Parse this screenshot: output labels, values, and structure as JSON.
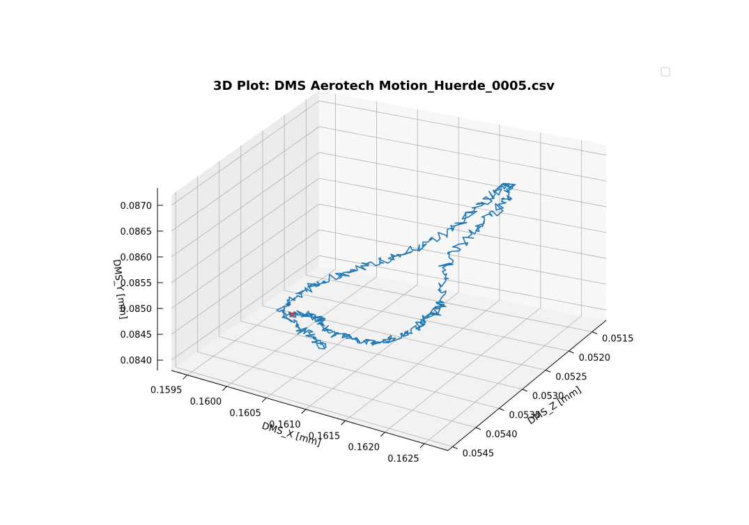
{
  "chart_data": {
    "type": "line3d",
    "title": "3D Plot: DMS Aerotech Motion_Huerde_0005.csv",
    "xlabel": "DMS_X [mm]",
    "ylabel": "DMS_Y [mm]",
    "zlabel": "DMS_Z [mm]",
    "x_ticks": [
      "0.1595",
      "0.1600",
      "0.1605",
      "0.1610",
      "0.1615",
      "0.1620",
      "0.1625"
    ],
    "y_ticks": [
      "0.0840",
      "0.0845",
      "0.0850",
      "0.0855",
      "0.0860",
      "0.0865",
      "0.0870"
    ],
    "z_ticks": [
      "0.0515",
      "0.0520",
      "0.0525",
      "0.0530",
      "0.0535",
      "0.0540",
      "0.0545"
    ],
    "xlim": [
      0.1593,
      0.1628
    ],
    "ylim": [
      0.0838,
      0.0872
    ],
    "zlim": [
      0.0512,
      0.0546
    ],
    "legend": {
      "position": "top-right",
      "entries": []
    },
    "grid": true,
    "series": [
      {
        "color": "#1f77b4",
        "marker": "line",
        "path": [
          [
            0.16038,
            0.08485,
            0.0538
          ],
          [
            0.1605,
            0.08492,
            0.05385
          ],
          [
            0.1606,
            0.08488,
            0.0537
          ],
          [
            0.16072,
            0.0848,
            0.05375
          ],
          [
            0.16085,
            0.0847,
            0.0538
          ],
          [
            0.161,
            0.08463,
            0.05372
          ],
          [
            0.1612,
            0.08458,
            0.05368
          ],
          [
            0.1614,
            0.0846,
            0.05362
          ],
          [
            0.16155,
            0.0847,
            0.05355
          ],
          [
            0.1617,
            0.08485,
            0.0535
          ],
          [
            0.1618,
            0.085,
            0.05345
          ],
          [
            0.1619,
            0.08518,
            0.05338
          ],
          [
            0.16195,
            0.08535,
            0.0533
          ],
          [
            0.1619,
            0.0856,
            0.05318
          ],
          [
            0.16185,
            0.0859,
            0.053
          ],
          [
            0.16195,
            0.0862,
            0.05285
          ],
          [
            0.1621,
            0.0865,
            0.0527
          ],
          [
            0.16225,
            0.0868,
            0.05255
          ],
          [
            0.16232,
            0.087,
            0.05245
          ],
          [
            0.16228,
            0.08712,
            0.05238
          ],
          [
            0.16215,
            0.087,
            0.05245
          ],
          [
            0.162,
            0.08672,
            0.05255
          ],
          [
            0.16182,
            0.0864,
            0.05265
          ],
          [
            0.1616,
            0.0861,
            0.0528
          ],
          [
            0.1614,
            0.0859,
            0.0529
          ],
          [
            0.16118,
            0.08575,
            0.05305
          ],
          [
            0.16095,
            0.0856,
            0.05318
          ],
          [
            0.16072,
            0.08545,
            0.0533
          ],
          [
            0.16055,
            0.0853,
            0.05342
          ],
          [
            0.1604,
            0.08515,
            0.05355
          ],
          [
            0.16028,
            0.085,
            0.05368
          ],
          [
            0.16025,
            0.08488,
            0.05378
          ],
          [
            0.1604,
            0.08478,
            0.05385
          ],
          [
            0.1606,
            0.0847,
            0.05392
          ],
          [
            0.16078,
            0.08462,
            0.05396
          ],
          [
            0.1609,
            0.08455,
            0.054
          ]
        ]
      }
    ],
    "markers": [
      {
        "color": "#d62728",
        "marker": "x",
        "point": [
          0.16038,
          0.08485,
          0.0538
        ]
      }
    ]
  }
}
